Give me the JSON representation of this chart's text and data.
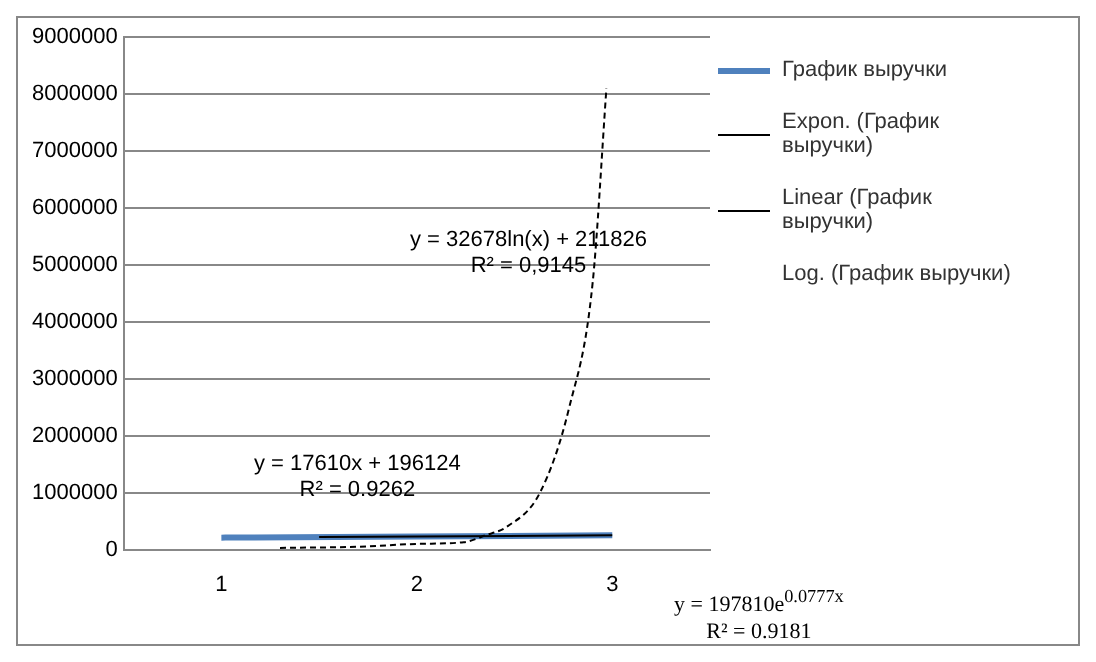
{
  "chart_data": {
    "type": "line",
    "x": [
      1,
      2,
      3
    ],
    "xlim": [
      0.5,
      3.5
    ],
    "xticks": [
      1,
      2,
      3
    ],
    "ylim": [
      0,
      9000000
    ],
    "yticks": [
      0,
      1000000,
      2000000,
      3000000,
      4000000,
      5000000,
      6000000,
      7000000,
      8000000,
      9000000
    ],
    "grid": "y",
    "legend": "right",
    "marker": "none",
    "series": [
      {
        "name": "График выручки",
        "color": "#4f81bd",
        "values": [
          210000,
          230000,
          250000
        ]
      },
      {
        "name": "Expon. (График выручки)",
        "color": "#000000",
        "line_style": "dashed",
        "x": [
          1.3,
          1.7,
          2.0,
          2.24,
          2.35,
          2.46,
          2.63,
          2.78,
          2.9,
          2.97
        ],
        "values": [
          30000,
          50000,
          100000,
          130000,
          250000,
          400000,
          1000000,
          2500000,
          4700000,
          8100000
        ]
      },
      {
        "name": "Linear (График выручки)",
        "color": "#000000",
        "x": [
          1.5,
          3
        ],
        "values": [
          220000,
          250000
        ]
      },
      {
        "name": "Log. (График выручки)",
        "values": [
          null,
          null,
          null
        ]
      }
    ],
    "annotations": [
      "y = 17610x + 196124\nR² = 0.9262",
      "y = 32678ln(x) + 211826\nR² = 0,9145",
      "y = 197810e$^{0.0777x}$\nR² = 0.9181"
    ]
  }
}
